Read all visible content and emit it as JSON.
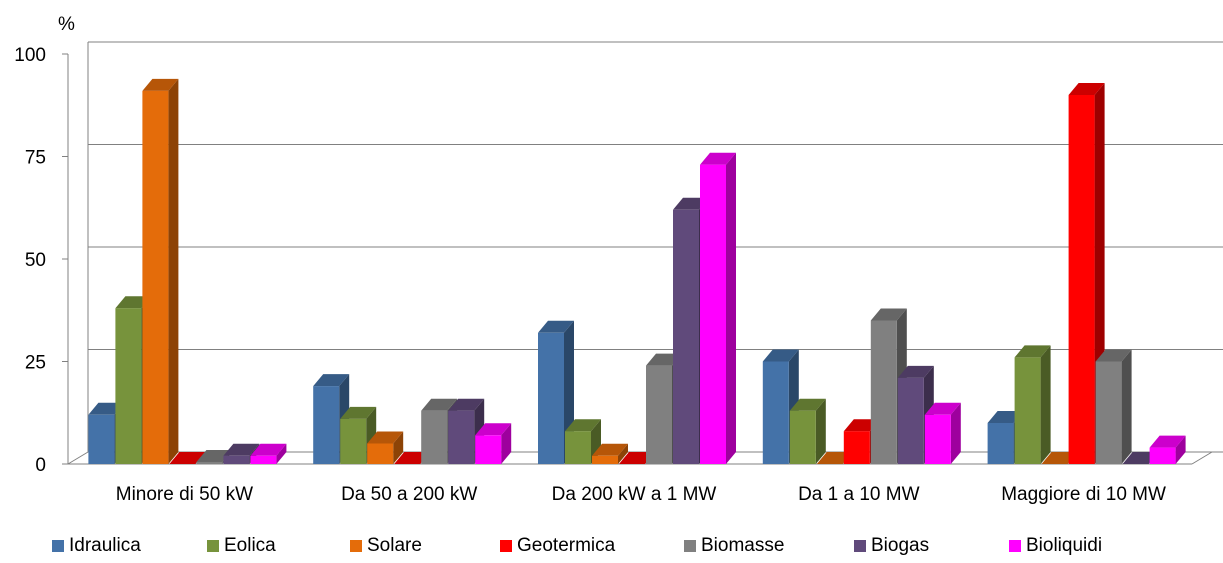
{
  "chart_data": {
    "type": "bar",
    "title": "",
    "xlabel": "",
    "ylabel": "%",
    "ylim": [
      0,
      100
    ],
    "yticks": [
      "0",
      "25",
      "50",
      "75",
      "100"
    ],
    "grid": true,
    "legend_position": "bottom",
    "categories": [
      "Minore di 50 kW",
      "Da 50 a 200 kW",
      "Da 200 kW a 1 MW",
      "Da 1 a 10 MW",
      "Maggiore di 10 MW"
    ],
    "series": [
      {
        "name": "Idraulica",
        "color": "#4472a8",
        "values": [
          12,
          19,
          32,
          25,
          10
        ]
      },
      {
        "name": "Eolica",
        "color": "#77933c",
        "values": [
          38,
          11,
          8,
          13,
          26
        ]
      },
      {
        "name": "Solare",
        "color": "#e46c0a",
        "values": [
          91,
          5,
          2,
          0,
          0
        ]
      },
      {
        "name": "Geotermica",
        "color": "#ff0000",
        "values": [
          0,
          0,
          0,
          8,
          90
        ]
      },
      {
        "name": "Biomasse",
        "color": "#808080",
        "values": [
          0.5,
          13,
          24,
          35,
          25
        ]
      },
      {
        "name": "Biogas",
        "color": "#604a7b",
        "values": [
          2,
          13,
          62,
          21,
          0
        ]
      },
      {
        "name": "Bioliquidi",
        "color": "#ff00ff",
        "values": [
          2,
          7,
          73,
          12,
          4
        ]
      }
    ]
  }
}
